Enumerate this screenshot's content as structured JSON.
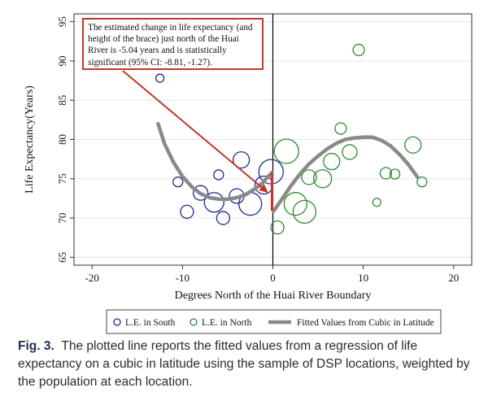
{
  "chart_data": {
    "type": "scatter",
    "ylabel": "Life Expectancy(Years)",
    "xlabel": "Degrees North of the Huai River Boundary",
    "xlim": [
      -22,
      22
    ],
    "ylim": [
      64,
      96
    ],
    "xticks": [
      -20,
      -10,
      0,
      10,
      20
    ],
    "yticks": [
      65,
      70,
      75,
      80,
      85,
      90,
      95
    ],
    "boundary_x": 0,
    "series": [
      {
        "name": "L.E. in South",
        "color": "#1f2a8c",
        "points": [
          {
            "x": -12.5,
            "y": 87.8,
            "r": 5
          },
          {
            "x": -10.5,
            "y": 74.6,
            "r": 6
          },
          {
            "x": -9.5,
            "y": 70.8,
            "r": 8
          },
          {
            "x": -8.0,
            "y": 73.2,
            "r": 9
          },
          {
            "x": -6.5,
            "y": 72.0,
            "r": 12
          },
          {
            "x": -6.0,
            "y": 75.5,
            "r": 6
          },
          {
            "x": -5.5,
            "y": 70.0,
            "r": 8
          },
          {
            "x": -4.0,
            "y": 72.8,
            "r": 9
          },
          {
            "x": -3.5,
            "y": 77.4,
            "r": 10
          },
          {
            "x": -2.5,
            "y": 71.8,
            "r": 14
          },
          {
            "x": -1.0,
            "y": 74.2,
            "r": 11
          },
          {
            "x": -0.2,
            "y": 75.9,
            "r": 15
          }
        ]
      },
      {
        "name": "L.E. in North",
        "color": "#2e8a2e",
        "points": [
          {
            "x": 0.5,
            "y": 68.8,
            "r": 8
          },
          {
            "x": 1.5,
            "y": 78.5,
            "r": 15
          },
          {
            "x": 2.5,
            "y": 71.8,
            "r": 14
          },
          {
            "x": 3.5,
            "y": 70.8,
            "r": 14
          },
          {
            "x": 4.0,
            "y": 75.2,
            "r": 9
          },
          {
            "x": 5.5,
            "y": 75.0,
            "r": 11
          },
          {
            "x": 6.5,
            "y": 77.2,
            "r": 10
          },
          {
            "x": 7.5,
            "y": 81.4,
            "r": 7
          },
          {
            "x": 8.5,
            "y": 78.4,
            "r": 9
          },
          {
            "x": 9.5,
            "y": 91.4,
            "r": 7
          },
          {
            "x": 11.5,
            "y": 72.0,
            "r": 5
          },
          {
            "x": 12.5,
            "y": 75.7,
            "r": 7
          },
          {
            "x": 13.5,
            "y": 75.6,
            "r": 6
          },
          {
            "x": 15.5,
            "y": 79.3,
            "r": 10
          },
          {
            "x": 16.5,
            "y": 74.6,
            "r": 6
          }
        ]
      }
    ],
    "fitted_south": {
      "name": "Fitted Values from Cubic in Latitude",
      "color": "#8a8a8a",
      "x": [
        -12.7,
        -12.0,
        -11.0,
        -10.0,
        -9.0,
        -8.0,
        -7.0,
        -6.0,
        -5.0,
        -4.0,
        -3.0,
        -2.0,
        -1.2,
        -0.6,
        -0.1
      ],
      "y": [
        82.0,
        79.5,
        77.1,
        75.3,
        74.0,
        73.1,
        72.6,
        72.4,
        72.4,
        72.6,
        73.0,
        73.7,
        74.4,
        75.2,
        75.8
      ]
    },
    "fitted_north": {
      "x": [
        0.1,
        1.0,
        2.0,
        3.0,
        4.0,
        5.0,
        6.0,
        7.0,
        8.0,
        9.0,
        10.0,
        11.0,
        12.0,
        13.0,
        14.0,
        15.0,
        16.0
      ],
      "y": [
        70.9,
        72.4,
        74.1,
        75.6,
        76.9,
        77.9,
        78.8,
        79.5,
        80.0,
        80.2,
        80.3,
        80.3,
        79.9,
        79.2,
        78.1,
        76.8,
        75.2
      ]
    },
    "legend": {
      "south": "L.E. in South",
      "north": "L.E. in North",
      "fitted": "Fitted Values from Cubic in Latitude"
    },
    "annotation": "The estimated change in life expectancy (and height of the brace) just north of the Huai River is -5.04 years and is statistically significant (95% CI: -8.81, -1.27).",
    "arrow_target": {
      "x": -0.5,
      "y": 73.2
    }
  },
  "caption": {
    "label": "Fig. 3.",
    "text": "The plotted line reports the fitted values from a regression of life expectancy on a cubic in latitude using the sample of DSP locations, weighted by the population at each location."
  }
}
